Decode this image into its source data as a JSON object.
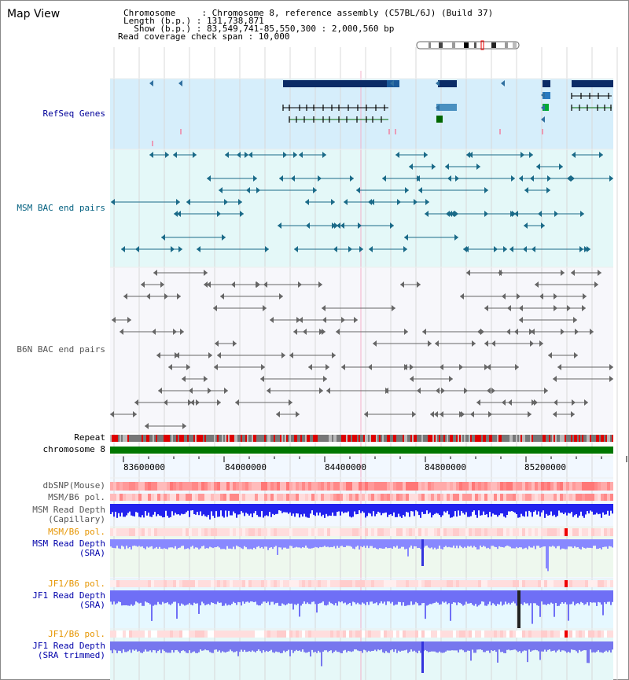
{
  "header": {
    "title": "Map View",
    "chromosome_row": "Chromosome     : Chromosome 8, reference assembly (C57BL/6J) (Build 37)",
    "length_row": "Length (b.p.) : 131,738,871",
    "show_row": "  Show (b.p.) : 83,549,741-85,550,300 : 2,000,560 bp",
    "coverage_row": "Read coverage check span : 10,000"
  },
  "tracks": {
    "refseq": "RefSeq Genes",
    "msm_bac": "MSM BAC end pairs",
    "b6n_bac": "B6N BAC end pairs",
    "repeat": "Repeat",
    "chromosome": "chromosome 8",
    "dbsnp": "dbSNP(Mouse)",
    "msm_b6_pol_1": "MSM/B6 pol.",
    "msm_depth_cap": "MSM Read Depth\n(Capillary)",
    "msm_b6_pol_2": "MSM/B6 pol.",
    "msm_depth_sra": "MSM Read Depth\n(SRA)",
    "jf1_b6_pol_1": "JF1/B6 pol.",
    "jf1_depth_sra": "JF1 Read Depth\n(SRA)",
    "jf1_b6_pol_2": "JF1/B6 pol.",
    "jf1_depth_trim": "JF1 Read Depth\n(SRA trimmed)"
  },
  "axis": {
    "ticks": [
      "83600000",
      "84000000",
      "84400000",
      "84800000",
      "85200000"
    ]
  },
  "colors": {
    "refseq_label": "#000099",
    "msm_label": "#005f7f",
    "b6n_label": "#555555",
    "pol_label": "#e69500",
    "depth_label": "#0000aa",
    "refseq_bg": "#d6eefb",
    "msm_bg": "#e4f8f8",
    "depth_blue": "#2222ee",
    "sra_blue": "#8888ff",
    "chromosome_green": "#007700",
    "repeat_red": "#dd0000"
  }
}
